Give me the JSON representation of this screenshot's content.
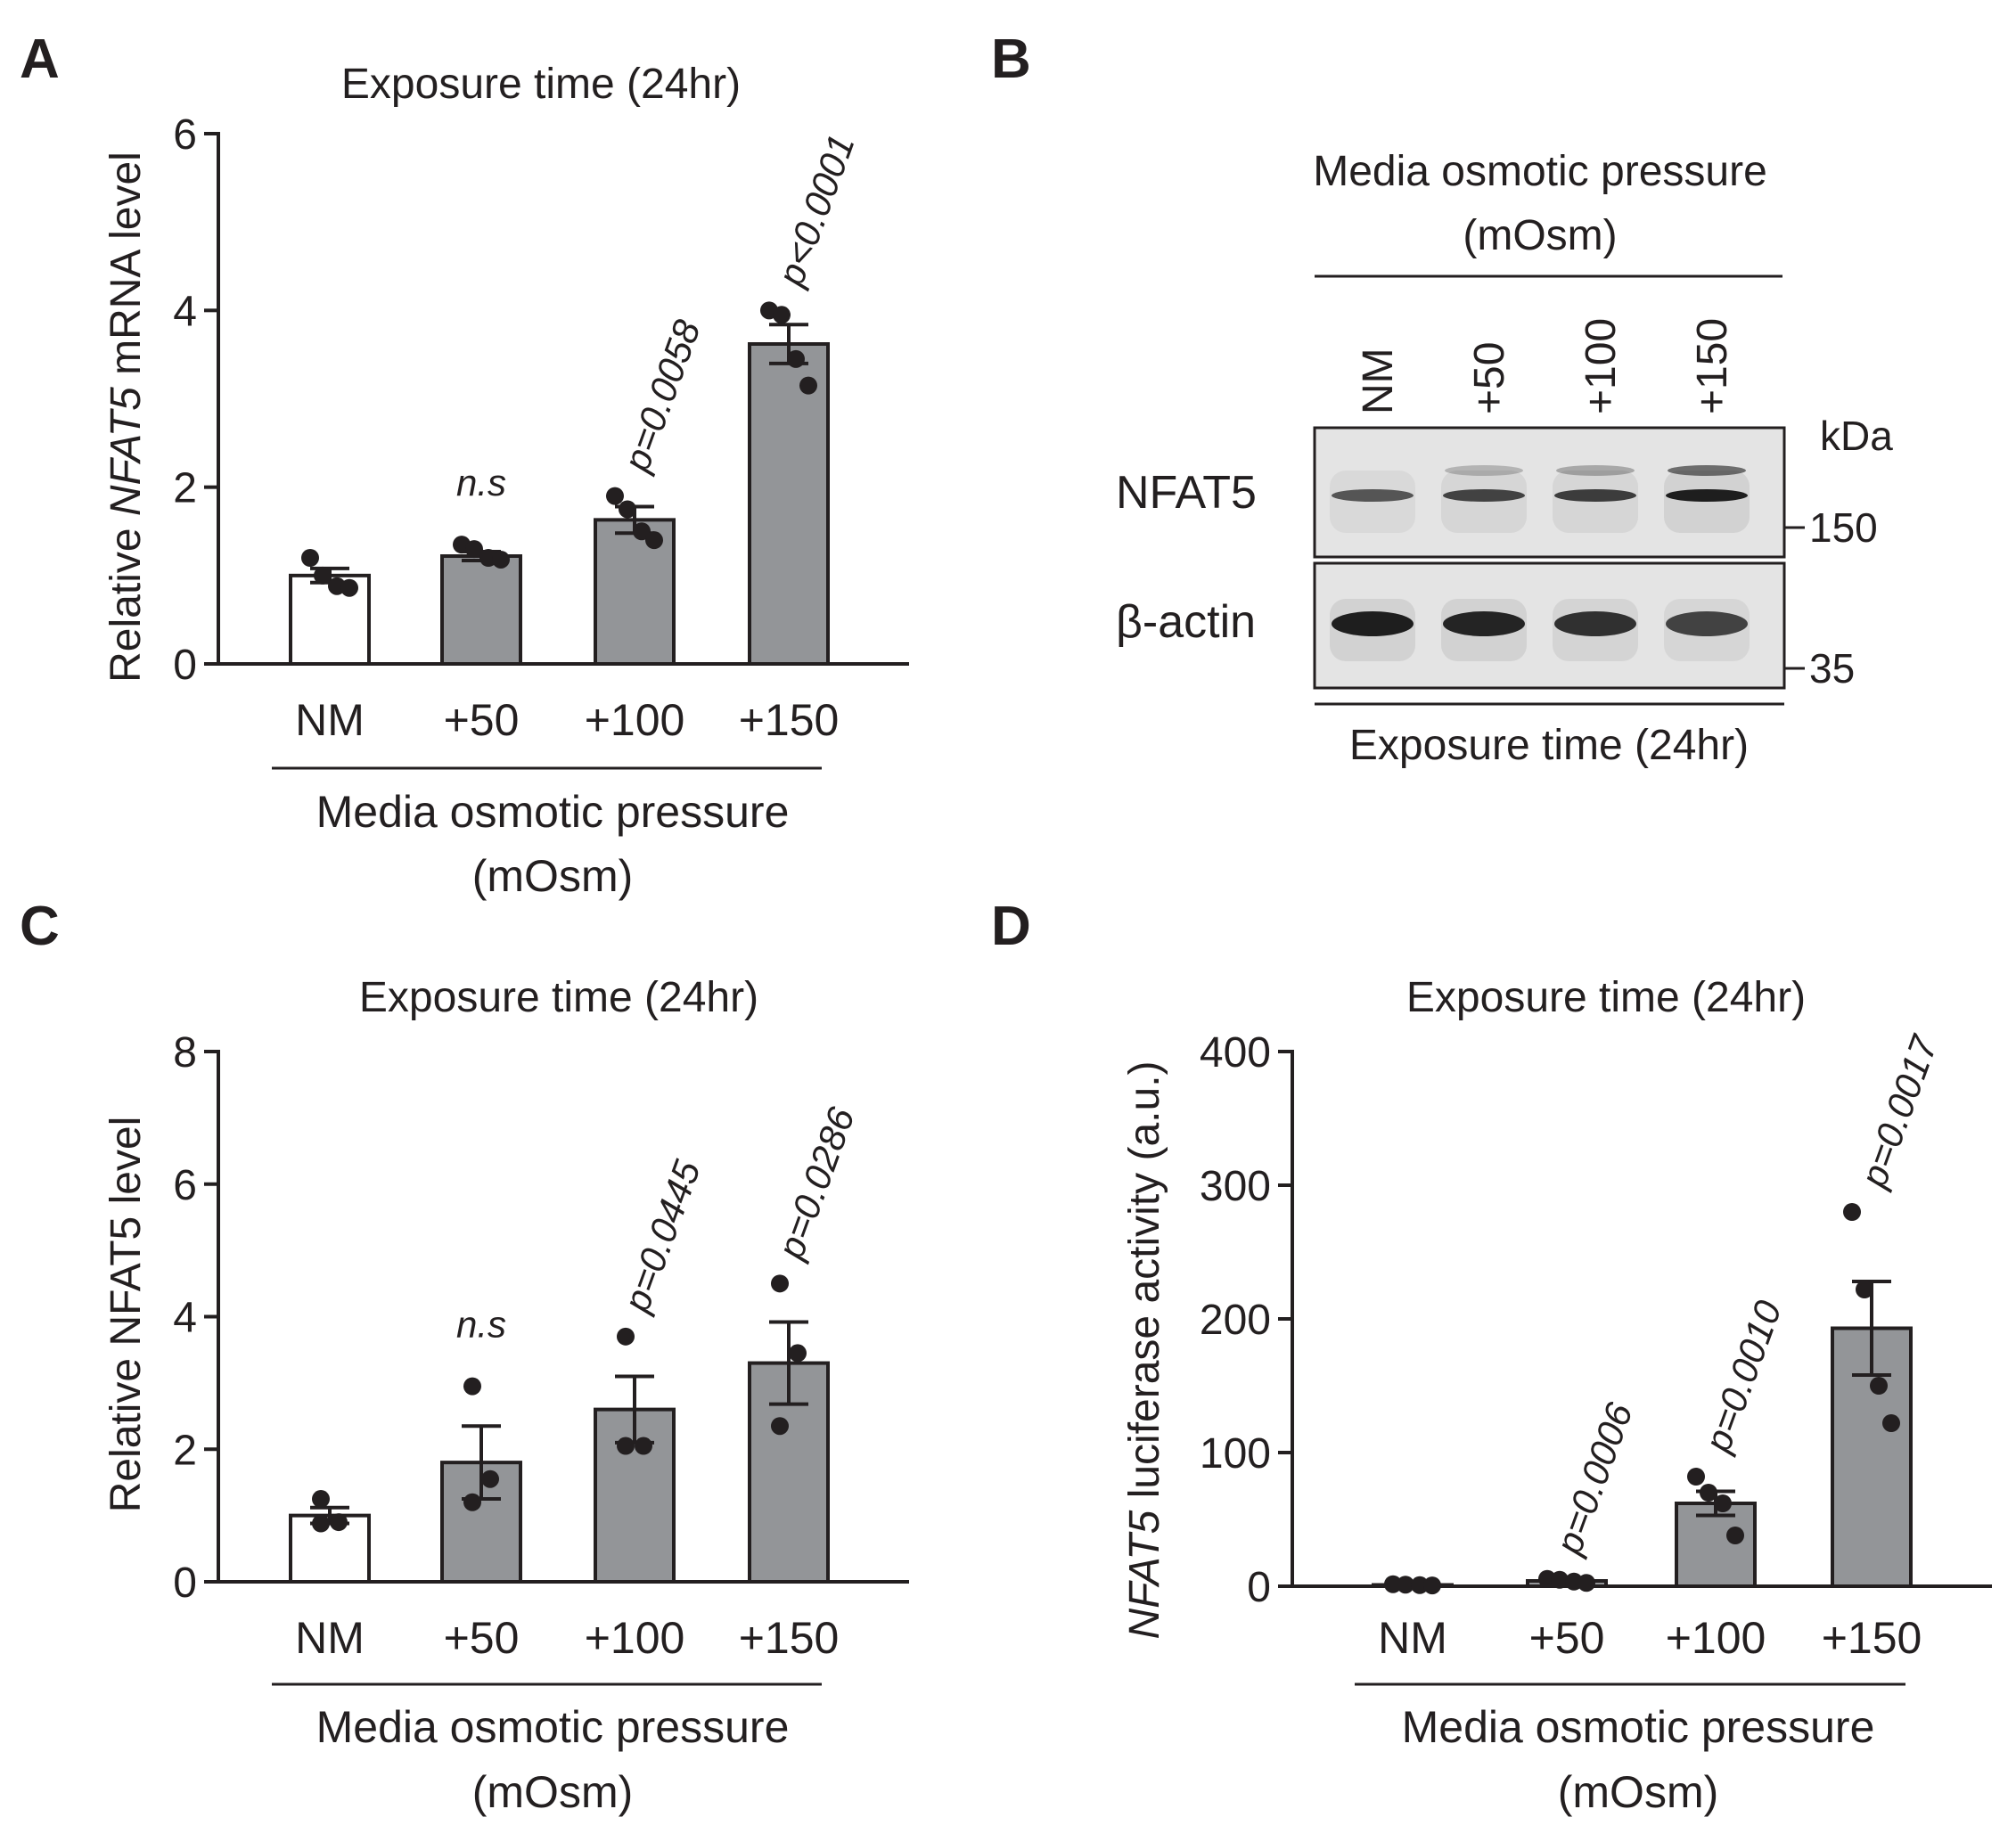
{
  "colors": {
    "ink": "#231f20",
    "bar_control": "#ffffff",
    "bar_treated": "#939598",
    "blot_bg": "#e4e4e4",
    "band": "#1e1e1e"
  },
  "panels": [
    {
      "letter": "A",
      "title": "Exposure time (24hr)",
      "ylabel_pre": "Relative ",
      "ylabel_ital": "NFAT5",
      "ylabel_post": " mRNA level",
      "xlabel_line1": "Media osmotic pressure",
      "xlabel_line2": "(mOsm)",
      "annotations": [
        "n.s",
        "p=0.0058",
        "p<0.0001"
      ]
    },
    {
      "letter": "C",
      "title": "Exposure time (24hr)",
      "ylabel_pre": "Relative NFAT5 level",
      "ylabel_ital": "",
      "ylabel_post": "",
      "xlabel_line1": "Media osmotic pressure",
      "xlabel_line2": "(mOsm)",
      "annotations": [
        "n.s",
        "p=0.0445",
        "p=0.0286"
      ]
    },
    {
      "letter": "D",
      "title": "Exposure time (24hr)",
      "ylabel_pre": "",
      "ylabel_ital": "NFAT5",
      "ylabel_post": " luciferase activity (a.u.)",
      "xlabel_line1": "Media osmotic pressure",
      "xlabel_line2": "(mOsm)",
      "annotations": [
        "p=0.0006",
        "p=0.0010",
        "p=0.0017"
      ]
    }
  ],
  "chart_data": [
    {
      "id": "A",
      "type": "bar",
      "title": "Exposure time (24hr)",
      "xlabel": "Media osmotic pressure (mOsm)",
      "ylabel": "Relative NFAT5 mRNA level",
      "categories": [
        "NM",
        "+50",
        "+100",
        "+150"
      ],
      "values": [
        1.0,
        1.22,
        1.63,
        3.62
      ],
      "sem": [
        0.08,
        0.05,
        0.15,
        0.22
      ],
      "points": [
        [
          1.2,
          1.0,
          0.88,
          0.86
        ],
        [
          1.35,
          1.3,
          1.2,
          1.18
        ],
        [
          1.9,
          1.75,
          1.5,
          1.4
        ],
        [
          4.0,
          3.95,
          3.45,
          3.15
        ]
      ],
      "ylim": [
        0,
        6
      ],
      "yticks": [
        "0",
        "2",
        "4",
        "6"
      ],
      "annotations": [
        "",
        "n.s",
        "p=0.0058",
        "p<0.0001"
      ]
    },
    {
      "id": "C",
      "type": "bar",
      "title": "Exposure time (24hr)",
      "xlabel": "Media osmotic pressure (mOsm)",
      "ylabel": "Relative NFAT5 level",
      "categories": [
        "NM",
        "+50",
        "+100",
        "+150"
      ],
      "values": [
        1.0,
        1.8,
        2.6,
        3.3
      ],
      "sem": [
        0.12,
        0.55,
        0.5,
        0.62
      ],
      "points": [
        [
          1.25,
          0.9,
          0.88
        ],
        [
          2.95,
          1.55,
          1.2
        ],
        [
          3.7,
          2.05,
          2.05
        ],
        [
          4.5,
          3.45,
          2.35
        ]
      ],
      "ylim": [
        0,
        8
      ],
      "yticks": [
        "0",
        "2",
        "4",
        "6",
        "8"
      ],
      "annotations": [
        "",
        "n.s",
        "p=0.0445",
        "p=0.0286"
      ]
    },
    {
      "id": "D",
      "type": "bar",
      "title": "Exposure time (24hr)",
      "xlabel": "Media osmotic pressure (mOsm)",
      "ylabel": "NFAT5 luciferase activity (a.u.)",
      "categories": [
        "NM",
        "+50",
        "+100",
        "+150"
      ],
      "values": [
        1.0,
        4.0,
        62.0,
        193.0
      ],
      "sem": [
        0.3,
        1.0,
        9.0,
        35.0
      ],
      "points": [
        [
          1.5,
          1.2,
          0.8,
          0.6
        ],
        [
          5.5,
          4.8,
          3.5,
          2.5
        ],
        [
          82.0,
          70.0,
          62.0,
          38.0
        ],
        [
          280.0,
          222.0,
          150.0,
          122.0
        ]
      ],
      "ylim": [
        0,
        400
      ],
      "yticks": [
        "0",
        "100",
        "200",
        "300",
        "400"
      ],
      "annotations": [
        "",
        "p=0.0006",
        "p=0.0010",
        "p=0.0017"
      ]
    }
  ],
  "blot": {
    "letter": "B",
    "header_line1": "Media osmotic pressure",
    "header_line2": "(mOsm)",
    "lanes": [
      "NM",
      "+50",
      "+100",
      "+150"
    ],
    "rows": [
      {
        "label": "NFAT5",
        "marker": "150",
        "intensity": [
          0.55,
          0.7,
          0.75,
          1.0
        ]
      },
      {
        "label": "β-actin",
        "marker": "35",
        "intensity": [
          1.0,
          0.95,
          0.85,
          0.7
        ]
      }
    ],
    "unit": "kDa",
    "footer": "Exposure time (24hr)"
  }
}
